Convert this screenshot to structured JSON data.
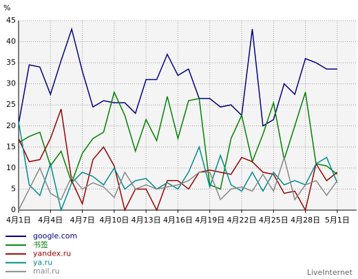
{
  "chart_data": {
    "type": "line",
    "y_label": "%",
    "categories": [
      "4月1日",
      null,
      null,
      "4月4日",
      null,
      null,
      "4月7日",
      null,
      null,
      "4月10日",
      null,
      null,
      "4月13日",
      null,
      null,
      "4月16日",
      null,
      null,
      "4月19日",
      null,
      null,
      "4月22日",
      null,
      null,
      "4月25日",
      null,
      null,
      "4月28日",
      null,
      null,
      "5月1日"
    ],
    "ylim": [
      0,
      45
    ],
    "yticks": [
      0,
      5,
      10,
      15,
      20,
      25,
      30,
      35,
      40,
      45
    ],
    "grid": true,
    "series": [
      {
        "name": "google.com",
        "color": "#000080",
        "values": [
          20.5,
          34.5,
          34,
          27.5,
          35.5,
          43,
          33,
          24.5,
          26,
          25.5,
          25.5,
          23,
          31,
          31,
          37,
          32,
          33.5,
          26.5,
          26.5,
          24.5,
          25,
          22.5,
          43,
          20,
          21.5,
          30,
          27.5,
          36,
          35,
          33.5,
          33.5
        ]
      },
      {
        "name": "书签",
        "color": "#008000",
        "values": [
          16,
          17.5,
          18.5,
          10.5,
          14,
          6.5,
          13.5,
          17,
          18.5,
          28,
          22.5,
          14,
          21.5,
          16.5,
          27,
          17,
          26,
          26.5,
          6,
          5,
          17,
          22.5,
          11.5,
          18,
          25.5,
          12,
          20,
          28,
          11,
          10.5,
          8.5
        ]
      },
      {
        "name": "yandex.ru",
        "color": "#990000",
        "values": [
          17,
          11.5,
          12,
          17,
          24,
          7,
          1.5,
          12,
          15,
          10.5,
          0,
          5,
          5,
          0,
          7,
          7,
          5,
          9,
          9.5,
          9,
          8.5,
          12.5,
          11.5,
          9,
          8.5,
          4,
          4.5,
          0,
          11,
          7,
          9
        ]
      },
      {
        "name": "ya.ru",
        "color": "#008b8b",
        "values": [
          21,
          6,
          3.5,
          11,
          0,
          6.5,
          9,
          8,
          6,
          10,
          5,
          7,
          7.5,
          5,
          6.5,
          5,
          9,
          15,
          5.5,
          13,
          6,
          4.5,
          9,
          4.5,
          9,
          6,
          7,
          6,
          11,
          12.5,
          6.5
        ]
      },
      {
        "name": "mail.ru",
        "color": "#888888",
        "values": [
          0,
          5,
          10,
          4,
          2.5,
          8,
          5,
          6.5,
          5.5,
          3,
          9,
          5,
          6,
          5,
          5.5,
          6,
          7,
          9,
          9,
          2.5,
          5,
          5.5,
          4.5,
          8.5,
          4.5,
          12.5,
          2.5,
          6,
          7,
          3.5,
          7
        ]
      }
    ],
    "footer": "LiveInternet"
  }
}
